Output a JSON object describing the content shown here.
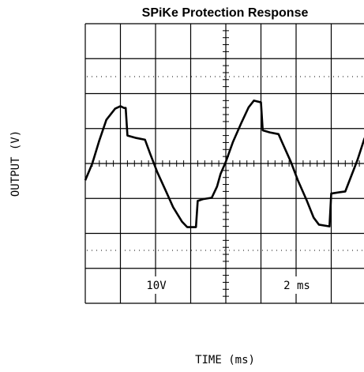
{
  "chart_data": {
    "type": "line",
    "title": "SPiKe Protection Response",
    "x_label": "TIME (ms)",
    "y_label": "OUTPUT (V)",
    "annotations": [
      "10V",
      "2 ms"
    ],
    "xlim": [
      0,
      16
    ],
    "ylim": [
      -40,
      40
    ],
    "xticks": [
      0,
      2,
      4,
      6,
      8,
      10,
      12,
      14,
      16
    ],
    "yticks": [
      -40,
      -30,
      -20,
      -10,
      0,
      10,
      20,
      30,
      40
    ],
    "grid": true,
    "series": [
      {
        "color": "#000000",
        "x": [
          0,
          0.4,
          0.8,
          1.2,
          1.7,
          2.0,
          2.2,
          2.3,
          2.4,
          2.9,
          3.4,
          3.7,
          4.1,
          4.6,
          5.0,
          5.5,
          5.8,
          6.3,
          6.4,
          6.7,
          7.2,
          7.5,
          7.7,
          8.0,
          8.4,
          8.9,
          9.3,
          9.6,
          10.0,
          10.1,
          10.5,
          11.0,
          11.2,
          11.7,
          12.1,
          12.6,
          13.0,
          13.3,
          13.9,
          14.0,
          14.5,
          14.8,
          15.1,
          15.5,
          15.9
        ],
        "values": [
          -4.8,
          0,
          6.6,
          12.5,
          15.7,
          16.4,
          15.9,
          15.9,
          8.0,
          7.3,
          6.8,
          2.7,
          -2.5,
          -8.0,
          -12.5,
          -16.6,
          -18.2,
          -18.2,
          -10.7,
          -10.2,
          -9.8,
          -6.6,
          -3.0,
          0.5,
          6.1,
          11.8,
          16.1,
          18.0,
          17.5,
          9.5,
          8.9,
          8.4,
          6.1,
          0.5,
          -4.8,
          -10.5,
          -15.5,
          -17.5,
          -18.0,
          -8.6,
          -8.2,
          -8.0,
          -4.1,
          1.1,
          7.3
        ]
      }
    ]
  }
}
